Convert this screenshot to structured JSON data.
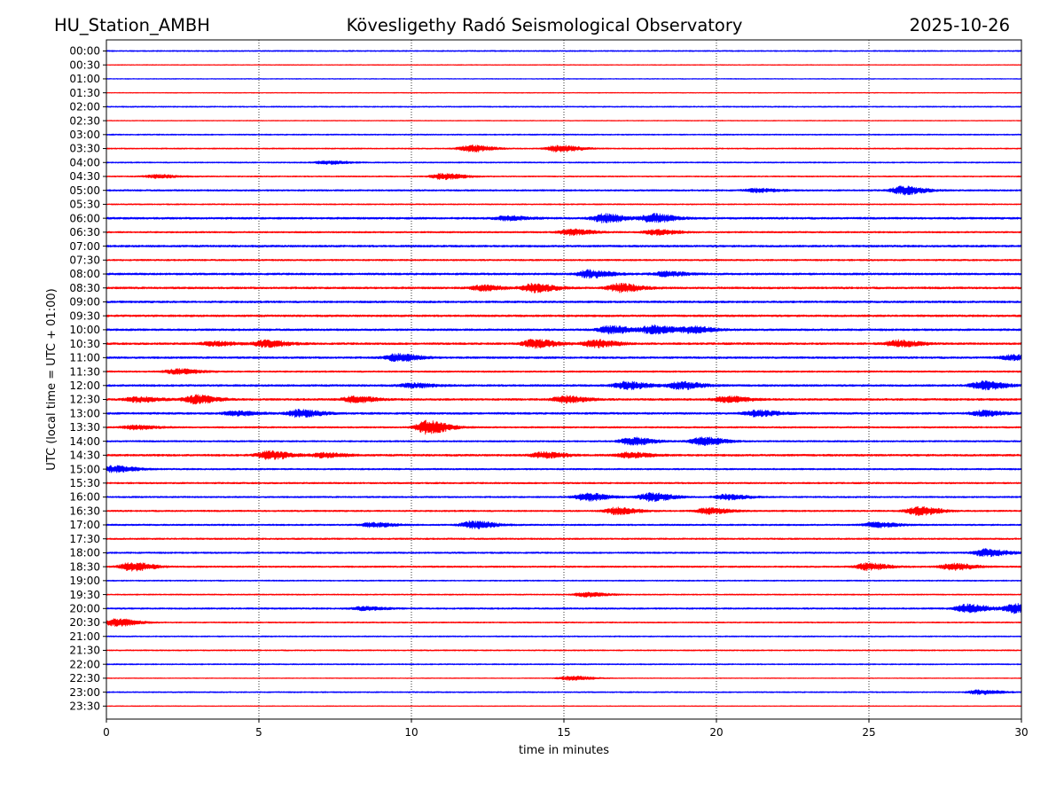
{
  "header": {
    "station": "HU_Station_AMBH",
    "observatory": "Kövesligethy Radó Seismological Observatory",
    "date": "2025-10-26"
  },
  "chart_data": {
    "type": "line",
    "title": "Kövesligethy Radó Seismological Observatory",
    "xlabel": "time in minutes",
    "ylabel": "UTC (local time = UTC + 01:00)",
    "xlim": [
      0,
      30
    ],
    "x_ticks": [
      0,
      5,
      10,
      15,
      20,
      25,
      30
    ],
    "x_tick_labels": [
      "0",
      "5",
      "10",
      "15",
      "20",
      "25",
      "30"
    ],
    "grid": "vertical dotted",
    "colors": [
      "#0000ff",
      "#ff0000"
    ],
    "row_labels": [
      "00:00",
      "00:30",
      "01:00",
      "01:30",
      "02:00",
      "02:30",
      "03:00",
      "03:30",
      "04:00",
      "04:30",
      "05:00",
      "05:30",
      "06:00",
      "06:30",
      "07:00",
      "07:30",
      "08:00",
      "08:30",
      "09:00",
      "09:30",
      "10:00",
      "10:30",
      "11:00",
      "11:30",
      "12:00",
      "12:30",
      "13:00",
      "13:30",
      "14:00",
      "14:30",
      "15:00",
      "15:30",
      "16:00",
      "16:30",
      "17:00",
      "17:30",
      "18:00",
      "18:30",
      "19:00",
      "19:30",
      "20:00",
      "20:30",
      "21:00",
      "21:30",
      "22:00",
      "22:30",
      "23:00",
      "23:30"
    ],
    "base_amplitude": [
      0.15,
      0.1,
      0.1,
      0.1,
      0.15,
      0.1,
      0.15,
      0.15,
      0.15,
      0.15,
      0.2,
      0.15,
      0.25,
      0.2,
      0.25,
      0.2,
      0.25,
      0.25,
      0.25,
      0.25,
      0.25,
      0.25,
      0.25,
      0.2,
      0.25,
      0.25,
      0.25,
      0.2,
      0.2,
      0.25,
      0.2,
      0.2,
      0.2,
      0.2,
      0.2,
      0.2,
      0.2,
      0.2,
      0.15,
      0.15,
      0.2,
      0.15,
      0.15,
      0.15,
      0.15,
      0.1,
      0.15,
      0.1
    ],
    "events": [
      {
        "row": "03:30",
        "minute": 11.9,
        "amplitude": 0.8
      },
      {
        "row": "03:30",
        "minute": 14.8,
        "amplitude": 0.8
      },
      {
        "row": "04:00",
        "minute": 7.2,
        "amplitude": 0.4
      },
      {
        "row": "04:30",
        "minute": 11.0,
        "amplitude": 0.7
      },
      {
        "row": "04:30",
        "minute": 1.6,
        "amplitude": 0.4
      },
      {
        "row": "05:00",
        "minute": 26.1,
        "amplitude": 1.0
      },
      {
        "row": "05:00",
        "minute": 21.3,
        "amplitude": 0.4
      },
      {
        "row": "06:00",
        "minute": 16.3,
        "amplitude": 1.0
      },
      {
        "row": "06:00",
        "minute": 17.9,
        "amplitude": 1.0
      },
      {
        "row": "06:00",
        "minute": 13.1,
        "amplitude": 0.5
      },
      {
        "row": "06:30",
        "minute": 15.2,
        "amplitude": 0.7
      },
      {
        "row": "06:30",
        "minute": 18.0,
        "amplitude": 0.6
      },
      {
        "row": "08:00",
        "minute": 15.8,
        "amplitude": 0.9
      },
      {
        "row": "08:00",
        "minute": 18.3,
        "amplitude": 0.5
      },
      {
        "row": "08:30",
        "minute": 14.0,
        "amplitude": 1.0
      },
      {
        "row": "08:30",
        "minute": 16.8,
        "amplitude": 1.0
      },
      {
        "row": "08:30",
        "minute": 12.3,
        "amplitude": 0.6
      },
      {
        "row": "10:00",
        "minute": 16.5,
        "amplitude": 0.9
      },
      {
        "row": "10:00",
        "minute": 17.9,
        "amplitude": 1.0
      },
      {
        "row": "10:00",
        "minute": 19.2,
        "amplitude": 0.7
      },
      {
        "row": "10:30",
        "minute": 14.0,
        "amplitude": 1.0
      },
      {
        "row": "10:30",
        "minute": 16.0,
        "amplitude": 0.9
      },
      {
        "row": "10:30",
        "minute": 5.2,
        "amplitude": 0.8
      },
      {
        "row": "10:30",
        "minute": 3.5,
        "amplitude": 0.5
      },
      {
        "row": "10:30",
        "minute": 25.9,
        "amplitude": 0.8
      },
      {
        "row": "11:00",
        "minute": 9.5,
        "amplitude": 0.9
      },
      {
        "row": "11:00",
        "minute": 29.7,
        "amplitude": 0.6
      },
      {
        "row": "11:30",
        "minute": 2.3,
        "amplitude": 0.6
      },
      {
        "row": "12:00",
        "minute": 17.0,
        "amplitude": 0.9
      },
      {
        "row": "12:00",
        "minute": 18.8,
        "amplitude": 0.9
      },
      {
        "row": "12:00",
        "minute": 28.7,
        "amplitude": 1.0
      },
      {
        "row": "12:00",
        "minute": 10.0,
        "amplitude": 0.5
      },
      {
        "row": "12:30",
        "minute": 2.9,
        "amplitude": 1.0
      },
      {
        "row": "12:30",
        "minute": 1.0,
        "amplitude": 0.6
      },
      {
        "row": "12:30",
        "minute": 8.1,
        "amplitude": 0.7
      },
      {
        "row": "12:30",
        "minute": 15.0,
        "amplitude": 0.8
      },
      {
        "row": "12:30",
        "minute": 20.3,
        "amplitude": 0.7
      },
      {
        "row": "13:00",
        "minute": 6.3,
        "amplitude": 0.9
      },
      {
        "row": "13:00",
        "minute": 4.2,
        "amplitude": 0.5
      },
      {
        "row": "13:00",
        "minute": 21.3,
        "amplitude": 0.7
      },
      {
        "row": "13:00",
        "minute": 28.7,
        "amplitude": 0.6
      },
      {
        "row": "13:30",
        "minute": 10.5,
        "amplitude": 1.6
      },
      {
        "row": "13:30",
        "minute": 0.9,
        "amplitude": 0.5
      },
      {
        "row": "14:00",
        "minute": 17.2,
        "amplitude": 0.9
      },
      {
        "row": "14:00",
        "minute": 19.5,
        "amplitude": 1.0
      },
      {
        "row": "14:30",
        "minute": 5.3,
        "amplitude": 1.0
      },
      {
        "row": "14:30",
        "minute": 14.3,
        "amplitude": 0.7
      },
      {
        "row": "14:30",
        "minute": 17.1,
        "amplitude": 0.6
      },
      {
        "row": "14:30",
        "minute": 7.1,
        "amplitude": 0.5
      },
      {
        "row": "15:00",
        "minute": 0.2,
        "amplitude": 0.8
      },
      {
        "row": "16:00",
        "minute": 15.7,
        "amplitude": 0.9
      },
      {
        "row": "16:00",
        "minute": 17.8,
        "amplitude": 1.0
      },
      {
        "row": "16:00",
        "minute": 20.3,
        "amplitude": 0.6
      },
      {
        "row": "16:30",
        "minute": 16.7,
        "amplitude": 0.8
      },
      {
        "row": "16:30",
        "minute": 19.7,
        "amplitude": 0.7
      },
      {
        "row": "16:30",
        "minute": 26.6,
        "amplitude": 1.0
      },
      {
        "row": "17:00",
        "minute": 12.0,
        "amplitude": 0.9
      },
      {
        "row": "17:00",
        "minute": 25.2,
        "amplitude": 0.6
      },
      {
        "row": "17:00",
        "minute": 8.7,
        "amplitude": 0.5
      },
      {
        "row": "18:00",
        "minute": 28.8,
        "amplitude": 0.9
      },
      {
        "row": "18:30",
        "minute": 0.8,
        "amplitude": 1.0
      },
      {
        "row": "18:30",
        "minute": 24.9,
        "amplitude": 0.8
      },
      {
        "row": "18:30",
        "minute": 27.7,
        "amplitude": 0.8
      },
      {
        "row": "19:30",
        "minute": 15.7,
        "amplitude": 0.5
      },
      {
        "row": "20:00",
        "minute": 28.2,
        "amplitude": 1.0
      },
      {
        "row": "20:00",
        "minute": 29.8,
        "amplitude": 1.2
      },
      {
        "row": "20:00",
        "minute": 8.4,
        "amplitude": 0.4
      },
      {
        "row": "20:30",
        "minute": 0.3,
        "amplitude": 0.9
      },
      {
        "row": "22:30",
        "minute": 15.2,
        "amplitude": 0.5
      },
      {
        "row": "23:00",
        "minute": 28.6,
        "amplitude": 0.5
      }
    ]
  }
}
